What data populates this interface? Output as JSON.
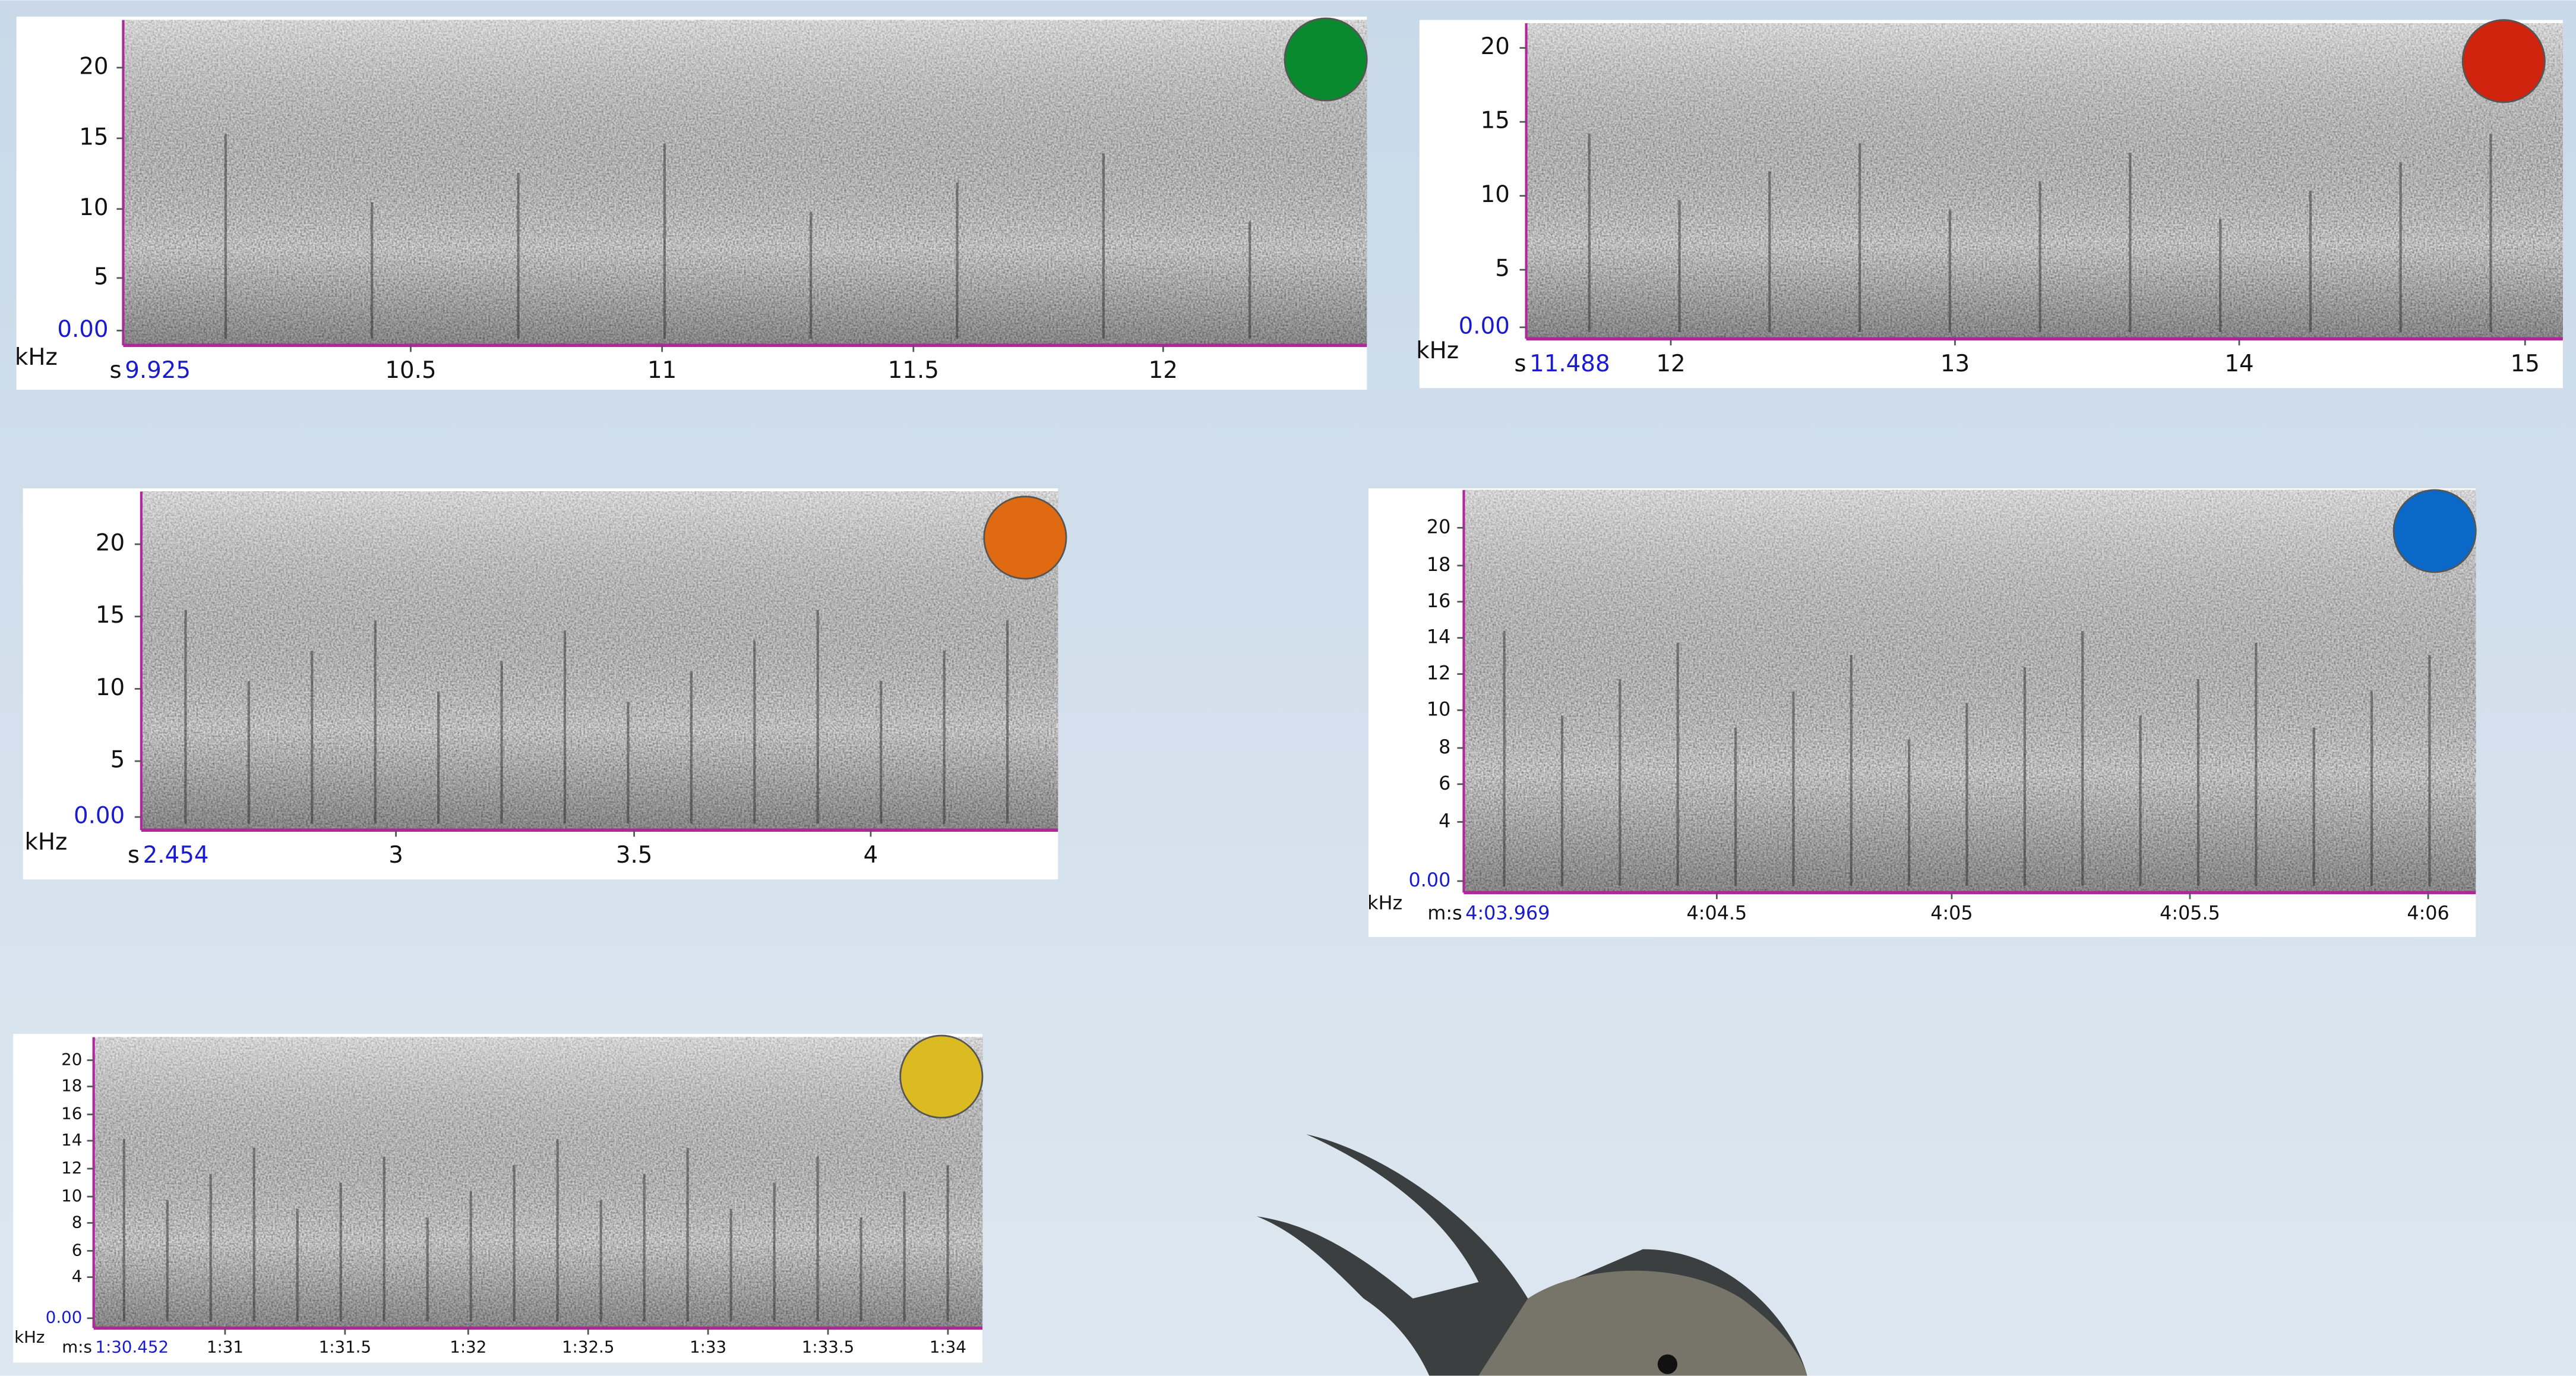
{
  "panels": [
    {
      "marker_color": "#0a8a2e",
      "y_unit": "kHz",
      "x_unit": "s",
      "x_start": "9.925",
      "yticks": [
        "20",
        "15",
        "10",
        "5",
        "0.00"
      ],
      "xticks": [
        "10.5",
        "11",
        "11.5",
        "12"
      ]
    },
    {
      "marker_color": "#d0230e",
      "y_unit": "kHz",
      "x_unit": "s",
      "x_start": "11.488",
      "yticks": [
        "20",
        "15",
        "10",
        "5",
        "0.00"
      ],
      "xticks": [
        "12",
        "13",
        "14",
        "15"
      ]
    },
    {
      "marker_color": "#e06a12",
      "y_unit": "kHz",
      "x_unit": "s",
      "x_start": "2.454",
      "yticks": [
        "20",
        "15",
        "10",
        "5",
        "0.00"
      ],
      "xticks": [
        "3",
        "3.5",
        "4"
      ]
    },
    {
      "marker_color": "#0a68c8",
      "y_unit": "kHz",
      "x_unit": "m:s",
      "x_start": "4:03.969",
      "yticks": [
        "20",
        "18",
        "16",
        "14",
        "12",
        "10",
        "8",
        "6",
        "4",
        "0.00"
      ],
      "xticks": [
        "4:04.5",
        "4:05",
        "4:05.5",
        "4:06"
      ]
    },
    {
      "marker_color": "#dcbb22",
      "y_unit": "kHz",
      "x_unit": "m:s",
      "x_start": "1:30.452",
      "yticks": [
        "20",
        "18",
        "16",
        "14",
        "12",
        "10",
        "8",
        "6",
        "4",
        "0.00"
      ],
      "xticks": [
        "1:31",
        "1:31.5",
        "1:32",
        "1:32.5",
        "1:33",
        "1:33.5",
        "1:34"
      ]
    }
  ]
}
